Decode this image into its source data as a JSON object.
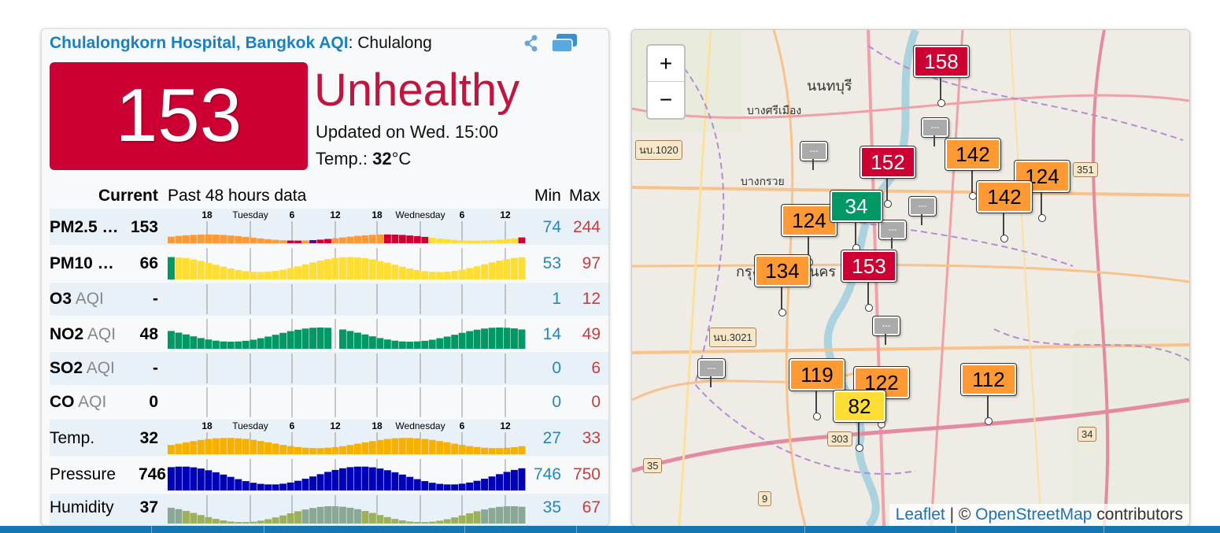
{
  "station": {
    "name_link": "Chulalongkorn Hospital, Bangkok AQI",
    "name_suffix": ": Chulalong",
    "aqi": "153",
    "status": "Unhealthy",
    "updated": "Updated on Wed. 15:00",
    "temp_prefix": "Temp.: ",
    "temp_value": "32",
    "temp_unit": "°C"
  },
  "table": {
    "header_current": "Current",
    "header_past": "Past 48 hours data",
    "header_min": "Min",
    "header_max": "Max",
    "axis_top": {
      "ticks": [
        "18",
        "Tuesday",
        "6",
        "12",
        "18",
        "Wednesday",
        "6",
        "12"
      ]
    },
    "rows": [
      {
        "label": "PM2.5 …",
        "sub": "",
        "current": "153",
        "min": "74",
        "max": "244"
      },
      {
        "label": "PM10 …",
        "sub": "",
        "current": "66",
        "min": "53",
        "max": "97"
      },
      {
        "label": "O3",
        "sub": " AQI",
        "current": "-",
        "min": "1",
        "max": "12"
      },
      {
        "label": "NO2",
        "sub": " AQI",
        "current": "48",
        "min": "14",
        "max": "49"
      },
      {
        "label": "SO2",
        "sub": " AQI",
        "current": "-",
        "min": "0",
        "max": "6"
      },
      {
        "label": "CO",
        "sub": " AQI",
        "current": "0",
        "min": "0",
        "max": "0"
      },
      {
        "label": "Temp.",
        "sub": "",
        "current": "32",
        "min": "27",
        "max": "33"
      },
      {
        "label": "Pressure",
        "sub": "",
        "current": "746",
        "min": "746",
        "max": "750"
      },
      {
        "label": "Humidity",
        "sub": "",
        "current": "37",
        "min": "35",
        "max": "67"
      }
    ]
  },
  "map": {
    "zoom_in": "+",
    "zoom_out": "−",
    "attribution_leaflet": "Leaflet",
    "attribution_sep": " | © ",
    "attribution_osm": "OpenStreetMap",
    "attribution_suffix": " contributors",
    "markers": [
      {
        "value": "158",
        "color": "#cc0033",
        "text": "#ffffff"
      },
      {
        "value": "152",
        "color": "#cc0033",
        "text": "#ffffff"
      },
      {
        "value": "142",
        "color": "#ff9933",
        "text": "#000000"
      },
      {
        "value": "124",
        "color": "#ff9933",
        "text": "#000000"
      },
      {
        "value": "142",
        "color": "#ff9933",
        "text": "#000000"
      },
      {
        "value": "124",
        "color": "#ff9933",
        "text": "#000000"
      },
      {
        "value": "34",
        "color": "#009966",
        "text": "#ffffff"
      },
      {
        "value": "134",
        "color": "#ff9933",
        "text": "#000000"
      },
      {
        "value": "153",
        "color": "#cc0033",
        "text": "#ffffff"
      },
      {
        "value": "119",
        "color": "#ff9933",
        "text": "#000000"
      },
      {
        "value": "122",
        "color": "#ff9933",
        "text": "#000000"
      },
      {
        "value": "82",
        "color": "#ffde33",
        "text": "#000000"
      },
      {
        "value": "112",
        "color": "#ff9933",
        "text": "#000000"
      }
    ],
    "gray_marker_text": "---",
    "labels": [
      "นนทบุรี",
      "บางศรีเมือง",
      "บางกรวย",
      "กรุงเทพมหานคร"
    ],
    "road_shields": [
      "นบ.1020",
      "351",
      "นบ.3021",
      "303",
      "34",
      "35",
      "9"
    ]
  },
  "colors": {
    "good": "#009966",
    "moderate": "#ffde33",
    "usg": "#ff9933",
    "unhealthy": "#cc0033",
    "very_unhealthy": "#660099",
    "link": "#1b80c0",
    "min": "#2187c0",
    "max": "#c83c3c"
  }
}
